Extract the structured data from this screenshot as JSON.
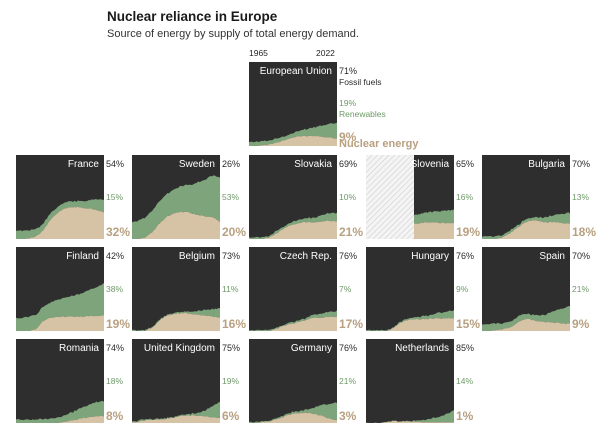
{
  "title": "Nuclear reliance in Europe",
  "subtitle": "Source of energy by supply of total energy demand.",
  "colors": {
    "fossil": "#2e2e2e",
    "renewables": "#7da47a",
    "nuclear": "#d6c2a5",
    "nuclear_text": "#b8a080",
    "renewables_text": "#6e9a68",
    "no_data_hatch": "#cfcfcf"
  },
  "series_labels": {
    "fossil": "Fossil fuels",
    "renewables": "Renewables",
    "nuclear": "Nuclear energy"
  },
  "chart_data": {
    "type": "area",
    "x_start": "1965",
    "x_end": "2022",
    "axis_year_labels": [
      "1965",
      "2022"
    ],
    "series_order": [
      "nuclear",
      "renewables",
      "fossil"
    ],
    "countries": [
      {
        "name": "European Union",
        "fossil": "71%",
        "renewables": "19%",
        "nuclear": "9%",
        "nuc_curve": [
          0,
          0,
          1,
          2,
          4,
          6,
          9,
          11,
          12,
          12,
          12,
          11,
          10,
          9
        ],
        "ren_curve": [
          5,
          5,
          5,
          5,
          5,
          5,
          5,
          6,
          7,
          9,
          11,
          14,
          17,
          19
        ]
      },
      {
        "name": "France",
        "fossil": "54%",
        "renewables": "15%",
        "nuclear": "32%",
        "nuc_curve": [
          0,
          0,
          1,
          3,
          10,
          22,
          30,
          36,
          38,
          38,
          37,
          36,
          34,
          32
        ],
        "ren_curve": [
          10,
          10,
          9,
          9,
          8,
          8,
          7,
          7,
          7,
          7,
          8,
          10,
          13,
          15
        ]
      },
      {
        "name": "Sweden",
        "fossil": "26%",
        "renewables": "53%",
        "nuclear": "20%",
        "nuc_curve": [
          0,
          0,
          2,
          8,
          18,
          26,
          30,
          32,
          32,
          30,
          28,
          27,
          26,
          20
        ],
        "ren_curve": [
          20,
          22,
          24,
          26,
          26,
          27,
          28,
          30,
          32,
          35,
          40,
          45,
          50,
          53
        ]
      },
      {
        "name": "Slovakia",
        "fossil": "69%",
        "renewables": "10%",
        "nuclear": "21%",
        "nuc_curve": [
          0,
          0,
          0,
          2,
          6,
          12,
          16,
          18,
          20,
          20,
          20,
          21,
          22,
          21
        ],
        "ren_curve": [
          2,
          2,
          2,
          2,
          3,
          3,
          3,
          4,
          4,
          5,
          6,
          8,
          9,
          10
        ]
      },
      {
        "name": "Slovenia",
        "fossil": "65%",
        "renewables": "16%",
        "nuclear": "19%",
        "start_frac": 0.55,
        "nuc_curve": [
          18,
          19,
          20,
          20,
          19,
          19,
          19
        ],
        "ren_curve": [
          10,
          11,
          12,
          13,
          14,
          15,
          16
        ]
      },
      {
        "name": "Bulgaria",
        "fossil": "70%",
        "renewables": "13%",
        "nuclear": "18%",
        "nuc_curve": [
          0,
          0,
          0,
          2,
          6,
          12,
          18,
          22,
          22,
          20,
          20,
          20,
          19,
          18
        ],
        "ren_curve": [
          3,
          3,
          3,
          3,
          3,
          3,
          3,
          3,
          4,
          5,
          7,
          9,
          11,
          13
        ]
      },
      {
        "name": "Finland",
        "fossil": "42%",
        "renewables": "38%",
        "nuclear": "19%",
        "nuc_curve": [
          0,
          0,
          0,
          3,
          12,
          16,
          17,
          17,
          17,
          17,
          17,
          18,
          18,
          19
        ],
        "ren_curve": [
          15,
          16,
          17,
          17,
          17,
          18,
          20,
          22,
          24,
          26,
          28,
          32,
          35,
          38
        ]
      },
      {
        "name": "Belgium",
        "fossil": "73%",
        "renewables": "11%",
        "nuclear": "16%",
        "nuc_curve": [
          0,
          0,
          0,
          4,
          12,
          18,
          20,
          21,
          21,
          20,
          19,
          18,
          17,
          16
        ],
        "ren_curve": [
          1,
          1,
          1,
          1,
          1,
          1,
          1,
          2,
          2,
          3,
          5,
          7,
          9,
          11
        ]
      },
      {
        "name": "Czech Rep.",
        "fossil": "76%",
        "renewables": "7%",
        "nuclear": "17%",
        "nuc_curve": [
          0,
          0,
          0,
          0,
          2,
          6,
          8,
          10,
          12,
          15,
          16,
          16,
          17,
          17
        ],
        "ren_curve": [
          1,
          1,
          1,
          1,
          1,
          1,
          2,
          2,
          2,
          3,
          4,
          5,
          6,
          7
        ]
      },
      {
        "name": "Hungary",
        "fossil": "76%",
        "renewables": "9%",
        "nuclear": "15%",
        "nuc_curve": [
          0,
          0,
          0,
          0,
          3,
          10,
          13,
          14,
          14,
          14,
          15,
          15,
          15,
          15
        ],
        "ren_curve": [
          1,
          1,
          1,
          1,
          1,
          1,
          2,
          2,
          3,
          4,
          5,
          7,
          8,
          9
        ]
      },
      {
        "name": "Spain",
        "fossil": "70%",
        "renewables": "21%",
        "nuclear": "9%",
        "nuc_curve": [
          0,
          0,
          1,
          2,
          4,
          8,
          14,
          14,
          12,
          11,
          10,
          10,
          9,
          9
        ],
        "ren_curve": [
          8,
          8,
          8,
          7,
          7,
          7,
          6,
          6,
          7,
          8,
          11,
          15,
          18,
          21
        ]
      },
      {
        "name": "Romania",
        "fossil": "74%",
        "renewables": "18%",
        "nuclear": "8%",
        "nuc_curve": [
          0,
          0,
          0,
          0,
          0,
          0,
          0,
          1,
          3,
          4,
          6,
          7,
          8,
          8
        ],
        "ren_curve": [
          4,
          4,
          4,
          4,
          5,
          5,
          6,
          7,
          9,
          11,
          13,
          15,
          17,
          18
        ]
      },
      {
        "name": "United Kingdom",
        "fossil": "75%",
        "renewables": "19%",
        "nuclear": "6%",
        "nuc_curve": [
          1,
          2,
          3,
          4,
          4,
          5,
          6,
          8,
          9,
          9,
          8,
          8,
          7,
          6
        ],
        "ren_curve": [
          1,
          1,
          1,
          1,
          1,
          1,
          1,
          1,
          1,
          2,
          4,
          8,
          14,
          19
        ]
      },
      {
        "name": "Germany",
        "fossil": "76%",
        "renewables": "21%",
        "nuclear": "3%",
        "nuc_curve": [
          0,
          0,
          1,
          2,
          4,
          7,
          10,
          12,
          12,
          12,
          10,
          8,
          5,
          3
        ],
        "ren_curve": [
          1,
          1,
          1,
          1,
          1,
          2,
          2,
          2,
          3,
          5,
          9,
          14,
          18,
          21
        ]
      },
      {
        "name": "Netherlands",
        "fossil": "85%",
        "renewables": "14%",
        "nuclear": "1%",
        "nuc_curve": [
          0,
          0,
          0,
          1,
          2,
          2,
          2,
          2,
          1,
          1,
          1,
          1,
          1,
          1
        ],
        "ren_curve": [
          0,
          0,
          0,
          0,
          0,
          0,
          0,
          1,
          2,
          3,
          5,
          7,
          10,
          14
        ]
      }
    ]
  }
}
